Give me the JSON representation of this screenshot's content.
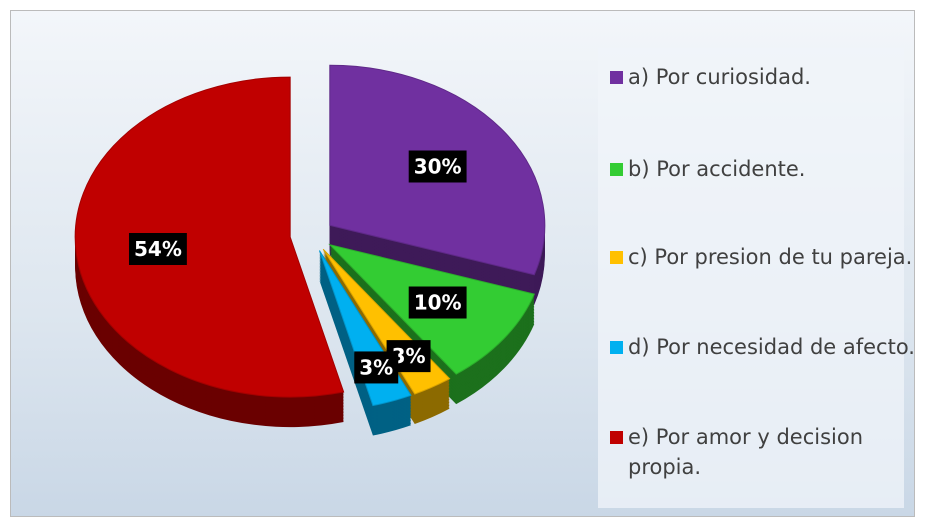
{
  "chart_data": {
    "type": "pie",
    "categories": [
      "a) Por curiosidad.",
      "b) Por accidente.",
      "c) Por presion de tu pareja.",
      "d) Por necesidad de afecto.",
      "e) Por amor y decision propia."
    ],
    "values": [
      30,
      10,
      3,
      3,
      54
    ],
    "value_labels": [
      "30%",
      "10%",
      "3%",
      "3%",
      "54%"
    ],
    "colors": [
      "#7030a0",
      "#33cc33",
      "#ffc000",
      "#00b0f0",
      "#c00000"
    ],
    "legend": "right"
  }
}
